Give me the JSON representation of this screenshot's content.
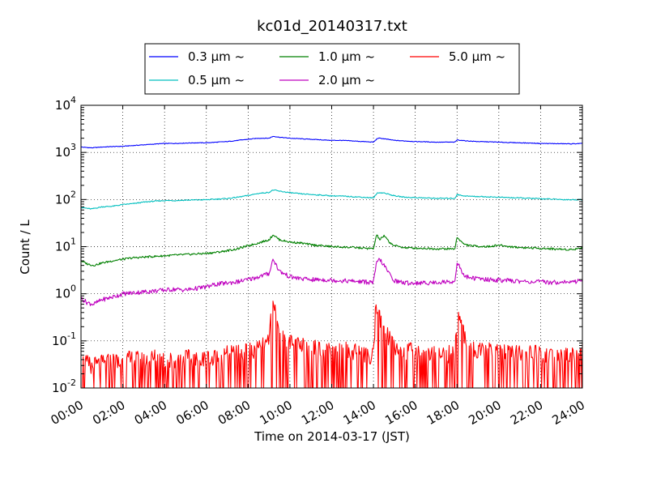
{
  "chart_data": {
    "type": "line",
    "title": "kc01d_20140317.txt",
    "xlabel": "Time on 2014-03-17 (JST)",
    "ylabel": "Count / L",
    "yscale": "log",
    "xlim": [
      0,
      24
    ],
    "ylim": [
      0.01,
      10000
    ],
    "grid": true,
    "legend_position": "top",
    "x_ticks": [
      "00:00",
      "02:00",
      "04:00",
      "06:00",
      "08:00",
      "10:00",
      "12:00",
      "14:00",
      "16:00",
      "18:00",
      "20:00",
      "22:00",
      "24:00"
    ],
    "y_ticks": [
      {
        "value": 0.01,
        "base": "10",
        "exp": "-2"
      },
      {
        "value": 0.1,
        "base": "10",
        "exp": "-1"
      },
      {
        "value": 1,
        "base": "10",
        "exp": "0"
      },
      {
        "value": 10,
        "base": "10",
        "exp": "1"
      },
      {
        "value": 100,
        "base": "10",
        "exp": "2"
      },
      {
        "value": 1000,
        "base": "10",
        "exp": "3"
      },
      {
        "value": 10000,
        "base": "10",
        "exp": "4"
      }
    ],
    "series": [
      {
        "name": "0.3 μm  ~",
        "color": "#0000ff",
        "x": [
          0,
          0.5,
          1,
          1.5,
          2,
          2.5,
          3,
          3.5,
          4,
          4.5,
          5,
          5.5,
          6,
          6.5,
          7,
          7.5,
          8,
          8.5,
          9,
          9.2,
          9.5,
          10,
          10.5,
          11,
          11.5,
          12,
          12.5,
          13,
          13.5,
          14,
          14.2,
          14.3,
          14.5,
          15,
          15.5,
          16,
          16.5,
          17,
          17.5,
          17.9,
          18.0,
          18.2,
          18.5,
          19,
          19.5,
          20,
          20.5,
          21,
          21.5,
          22,
          22.5,
          23,
          23.5,
          24
        ],
        "y": [
          1300,
          1250,
          1300,
          1330,
          1350,
          1400,
          1450,
          1500,
          1550,
          1550,
          1580,
          1600,
          1600,
          1650,
          1700,
          1800,
          1900,
          2000,
          2000,
          2200,
          2100,
          2000,
          1950,
          1900,
          1850,
          1800,
          1800,
          1750,
          1700,
          1650,
          2000,
          2000,
          1950,
          1800,
          1750,
          1700,
          1680,
          1650,
          1650,
          1650,
          1850,
          1800,
          1750,
          1700,
          1680,
          1650,
          1620,
          1600,
          1580,
          1550,
          1540,
          1530,
          1520,
          1550
        ]
      },
      {
        "name": "0.5 μm  ~",
        "color": "#00bfbf",
        "x": [
          0,
          0.5,
          1,
          1.5,
          2,
          2.5,
          3,
          3.5,
          4,
          4.5,
          5,
          5.5,
          6,
          6.5,
          7,
          7.5,
          8,
          8.5,
          9,
          9.2,
          9.5,
          10,
          10.5,
          11,
          11.5,
          12,
          12.5,
          13,
          13.5,
          14,
          14.2,
          14.5,
          15,
          15.5,
          16,
          16.5,
          17,
          17.5,
          17.9,
          18.0,
          18.2,
          18.5,
          19,
          19.5,
          20,
          20.5,
          21,
          21.5,
          22,
          22.5,
          23,
          23.5,
          24
        ],
        "y": [
          68,
          63,
          70,
          72,
          78,
          82,
          88,
          92,
          95,
          95,
          97,
          98,
          99,
          102,
          105,
          112,
          122,
          135,
          142,
          160,
          150,
          140,
          132,
          128,
          124,
          120,
          118,
          115,
          112,
          108,
          140,
          138,
          120,
          112,
          110,
          108,
          106,
          106,
          106,
          128,
          122,
          118,
          116,
          114,
          112,
          110,
          108,
          106,
          104,
          102,
          100,
          99,
          100
        ]
      },
      {
        "name": "1.0 μm  ~",
        "color": "#008000",
        "x": [
          0,
          0.3,
          0.6,
          1,
          1.5,
          2,
          2.5,
          3,
          3.5,
          4,
          4.5,
          5,
          5.5,
          6,
          6.5,
          7,
          7.5,
          8,
          8.5,
          9,
          9.2,
          9.5,
          10,
          10.5,
          11,
          11.5,
          12,
          12.5,
          13,
          13.5,
          14,
          14.15,
          14.3,
          14.5,
          14.8,
          15,
          15.5,
          16,
          16.5,
          17,
          17.5,
          17.9,
          18.0,
          18.3,
          18.6,
          19,
          19.5,
          20,
          20.5,
          21,
          21.5,
          22,
          22.5,
          23,
          23.5,
          24
        ],
        "y": [
          5.0,
          4.3,
          4.0,
          4.5,
          5.0,
          5.4,
          5.8,
          6.0,
          6.2,
          6.4,
          6.6,
          6.8,
          7.0,
          7.2,
          7.6,
          8.2,
          9.0,
          10.5,
          12.0,
          14.0,
          18.0,
          14.0,
          12.5,
          12.0,
          11.0,
          10.5,
          10.0,
          9.8,
          9.6,
          9.3,
          9.0,
          18.0,
          14.0,
          17.0,
          12.0,
          10.5,
          9.5,
          9.3,
          9.2,
          9.0,
          9.0,
          9.0,
          16.0,
          11.5,
          10.5,
          10.2,
          10.0,
          10.8,
          10.0,
          9.6,
          9.4,
          9.2,
          9.0,
          8.8,
          8.7,
          9.5
        ]
      },
      {
        "name": "2.0 μm  ~",
        "color": "#bf00bf",
        "x": [
          0,
          0.3,
          0.6,
          1,
          1.5,
          2,
          2.5,
          3,
          3.5,
          4,
          4.5,
          5,
          5.5,
          6,
          6.5,
          7,
          7.5,
          8,
          8.5,
          9,
          9.2,
          9.5,
          10,
          10.5,
          11,
          11.5,
          12,
          12.5,
          13,
          13.5,
          14,
          14.15,
          14.3,
          14.5,
          14.8,
          15,
          15.5,
          16,
          16.5,
          17,
          17.5,
          17.9,
          18.0,
          18.3,
          18.6,
          19,
          19.5,
          20,
          20.5,
          21,
          21.5,
          22,
          22.5,
          23,
          23.5,
          24
        ],
        "y": [
          0.8,
          0.65,
          0.6,
          0.75,
          0.85,
          1.0,
          1.05,
          1.1,
          1.15,
          1.2,
          1.25,
          1.2,
          1.3,
          1.4,
          1.6,
          1.7,
          1.8,
          2.0,
          2.3,
          2.7,
          5.5,
          3.0,
          2.3,
          2.1,
          2.0,
          2.0,
          1.95,
          1.9,
          1.85,
          1.8,
          1.75,
          4.5,
          5.5,
          4.0,
          2.5,
          1.9,
          1.7,
          1.7,
          1.7,
          1.75,
          1.8,
          1.8,
          4.8,
          2.5,
          2.2,
          2.1,
          2.0,
          1.95,
          1.9,
          1.85,
          1.8,
          1.8,
          1.75,
          1.8,
          1.75,
          2.0
        ]
      },
      {
        "name": "5.0 μm  ~",
        "color": "#ff0000",
        "x": [
          0,
          0.5,
          1,
          1.5,
          2,
          2.5,
          3,
          3.5,
          4,
          4.5,
          5,
          5.5,
          6,
          6.5,
          7,
          7.5,
          8,
          8.5,
          9,
          9.1,
          9.3,
          9.5,
          10,
          10.5,
          11,
          11.5,
          12,
          12.5,
          13,
          13.5,
          14,
          14.1,
          14.3,
          14.6,
          15,
          15.5,
          16,
          16.5,
          17,
          17.5,
          17.9,
          18.0,
          18.3,
          18.6,
          19,
          19.5,
          20,
          20.5,
          21,
          21.5,
          22,
          22.5,
          23,
          23.5,
          24
        ],
        "y": [
          0.025,
          0.02,
          0.022,
          0.025,
          0.025,
          0.028,
          0.025,
          0.03,
          0.028,
          0.025,
          0.03,
          0.025,
          0.03,
          0.03,
          0.035,
          0.035,
          0.04,
          0.045,
          0.06,
          0.32,
          0.3,
          0.08,
          0.06,
          0.05,
          0.05,
          0.045,
          0.04,
          0.045,
          0.04,
          0.035,
          0.03,
          0.28,
          0.2,
          0.1,
          0.05,
          0.04,
          0.04,
          0.035,
          0.035,
          0.035,
          0.035,
          0.22,
          0.1,
          0.05,
          0.04,
          0.04,
          0.04,
          0.035,
          0.035,
          0.035,
          0.035,
          0.03,
          0.03,
          0.035,
          0.04
        ]
      }
    ]
  }
}
